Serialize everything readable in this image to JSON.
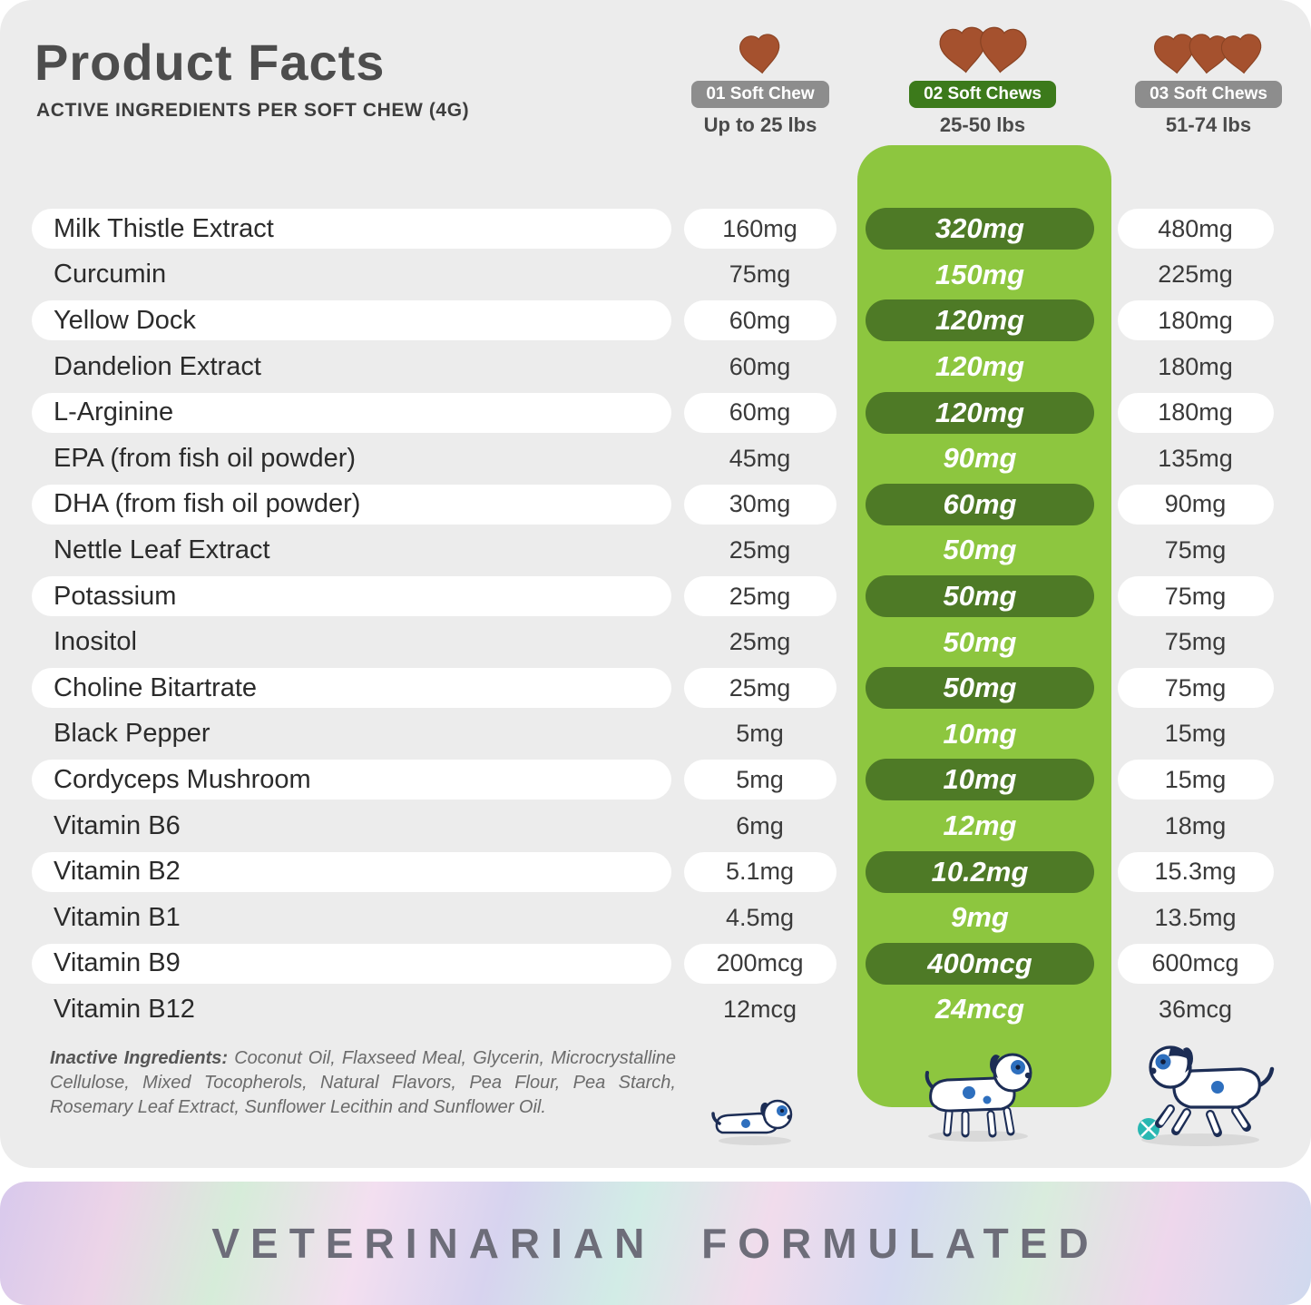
{
  "header": {
    "title": "Product Facts",
    "subtitle": "ACTIVE INGREDIENTS PER SOFT CHEW (4G)"
  },
  "dose_columns": [
    {
      "badge": "01 Soft Chew",
      "weight": "Up to 25 lbs",
      "chew_count": 1,
      "highlighted": false
    },
    {
      "badge": "02 Soft Chews",
      "weight": "25-50 lbs",
      "chew_count": 2,
      "highlighted": true
    },
    {
      "badge": "03 Soft Chews",
      "weight": "51-74 lbs",
      "chew_count": 3,
      "highlighted": false
    }
  ],
  "rows": [
    {
      "name": "Milk Thistle Extract",
      "dose1": "160mg",
      "dose2": "320mg",
      "dose3": "480mg"
    },
    {
      "name": "Curcumin",
      "dose1": "75mg",
      "dose2": "150mg",
      "dose3": "225mg"
    },
    {
      "name": "Yellow Dock",
      "dose1": "60mg",
      "dose2": "120mg",
      "dose3": "180mg"
    },
    {
      "name": "Dandelion Extract",
      "dose1": "60mg",
      "dose2": "120mg",
      "dose3": "180mg"
    },
    {
      "name": "L-Arginine",
      "dose1": "60mg",
      "dose2": "120mg",
      "dose3": "180mg"
    },
    {
      "name": "EPA (from fish oil powder)",
      "dose1": "45mg",
      "dose2": "90mg",
      "dose3": "135mg"
    },
    {
      "name": "DHA (from fish oil powder)",
      "dose1": "30mg",
      "dose2": "60mg",
      "dose3": "90mg"
    },
    {
      "name": "Nettle Leaf Extract",
      "dose1": "25mg",
      "dose2": "50mg",
      "dose3": "75mg"
    },
    {
      "name": "Potassium",
      "dose1": "25mg",
      "dose2": "50mg",
      "dose3": "75mg"
    },
    {
      "name": "Inositol",
      "dose1": "25mg",
      "dose2": "50mg",
      "dose3": "75mg"
    },
    {
      "name": "Choline Bitartrate",
      "dose1": "25mg",
      "dose2": "50mg",
      "dose3": "75mg"
    },
    {
      "name": "Black Pepper",
      "dose1": "5mg",
      "dose2": "10mg",
      "dose3": "15mg"
    },
    {
      "name": "Cordyceps Mushroom",
      "dose1": "5mg",
      "dose2": "10mg",
      "dose3": "15mg"
    },
    {
      "name": "Vitamin B6",
      "dose1": "6mg",
      "dose2": "12mg",
      "dose3": "18mg"
    },
    {
      "name": "Vitamin B2",
      "dose1": "5.1mg",
      "dose2": "10.2mg",
      "dose3": "15.3mg"
    },
    {
      "name": "Vitamin B1",
      "dose1": "4.5mg",
      "dose2": "9mg",
      "dose3": "13.5mg"
    },
    {
      "name": "Vitamin B9",
      "dose1": "200mcg",
      "dose2": "400mcg",
      "dose3": "600mcg"
    },
    {
      "name": "Vitamin B12",
      "dose1": "12mcg",
      "dose2": "24mcg",
      "dose3": "36mcg"
    }
  ],
  "inactive_ingredients": {
    "label": "Inactive Ingredients:",
    "text": "Coconut Oil, Flaxseed Meal, Glycerin, Microcrystalline Cellulose, Mixed Tocopherols, Natural Flavors, Pea Flour, Pea Starch, Rosemary Leaf Extract, Sunflower Lecithin and Sunflower Oil."
  },
  "footer": {
    "banner_text": "VETERINARIAN FORMULATED"
  },
  "icons": {
    "chew": "heart-shaped-soft-chew-icon",
    "puppies": [
      "small-puppy-icon",
      "medium-puppy-icon",
      "running-puppy-with-ball-icon"
    ]
  },
  "colors": {
    "card_background": "#ececec",
    "highlight_column": "#8dc63f",
    "dose_pill": "#4e7a26",
    "badge_green": "#3c7a1b",
    "badge_gray": "#8d8d8d",
    "chew_brown": "#a5512e",
    "banner_text": "#6d6d79"
  }
}
